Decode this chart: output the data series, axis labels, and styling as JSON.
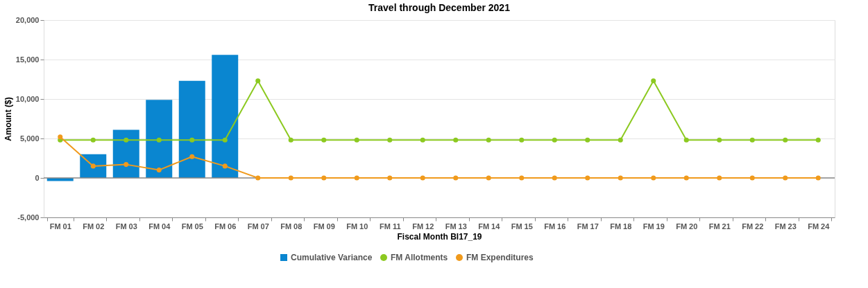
{
  "chart_data": {
    "type": "bar",
    "title": "Travel through December 2021",
    "xlabel": "Fiscal Month BI17_19",
    "ylabel": "Amount ($)",
    "categories": [
      "FM 01",
      "FM 02",
      "FM 03",
      "FM 04",
      "FM 05",
      "FM 06",
      "FM 07",
      "FM 08",
      "FM 09",
      "FM 10",
      "FM 11",
      "FM 12",
      "FM 13",
      "FM 14",
      "FM 15",
      "FM 16",
      "FM 17",
      "FM 18",
      "FM 19",
      "FM 20",
      "FM 21",
      "FM 22",
      "FM 23",
      "FM 24"
    ],
    "series": [
      {
        "name": "Cumulative Variance",
        "color": "#0a86d0",
        "values": [
          -400,
          3000,
          6100,
          9900,
          12300,
          15600,
          null,
          null,
          null,
          null,
          null,
          null,
          null,
          null,
          null,
          null,
          null,
          null,
          null,
          null,
          null,
          null,
          null,
          null
        ]
      },
      {
        "name": "FM Allotments",
        "type": "line",
        "color": "#8cc920",
        "values": [
          4800,
          4800,
          4800,
          4800,
          4800,
          4800,
          12300,
          4800,
          4800,
          4800,
          4800,
          4800,
          4800,
          4800,
          4800,
          4800,
          4800,
          4800,
          12300,
          4800,
          4800,
          4800,
          4800,
          4800
        ]
      },
      {
        "name": "FM Expenditures",
        "type": "line",
        "color": "#f09a1c",
        "values": [
          5200,
          1500,
          1700,
          1000,
          2700,
          1500,
          0,
          0,
          0,
          0,
          0,
          0,
          0,
          0,
          0,
          0,
          0,
          0,
          0,
          0,
          0,
          0,
          0,
          0
        ]
      }
    ],
    "ylim": [
      -5000,
      20000
    ],
    "yticks": [
      {
        "value": -5000,
        "label": "-5,000"
      },
      0,
      {
        "value": 5000,
        "label": "5,000"
      },
      {
        "value": 10000,
        "label": "10,000"
      },
      {
        "value": 15000,
        "label": "15,000"
      },
      {
        "value": 20000,
        "label": "20,000"
      }
    ],
    "grid": "y",
    "legend": "bottom",
    "marker": "circle",
    "line_style": "solid"
  }
}
